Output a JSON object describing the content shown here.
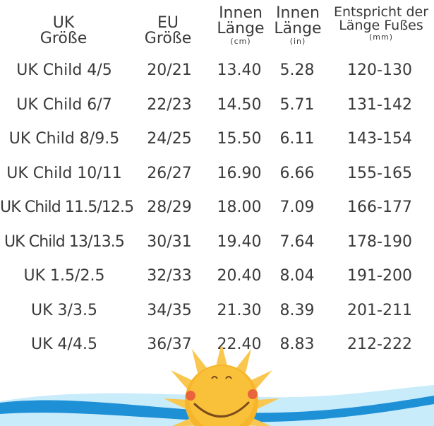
{
  "headers": {
    "uk": {
      "line1": "UK",
      "line2": "Größe"
    },
    "eu": {
      "line1": "EU",
      "line2": "Größe"
    },
    "cm": {
      "line1": "Innen",
      "line2": "Länge",
      "unit": "(cm)"
    },
    "in": {
      "line1": "Innen",
      "line2": "Länge",
      "unit": "(in)"
    },
    "mm": {
      "line1": "Entspricht der",
      "line2": "Länge Fußes",
      "unit": "(mm)"
    }
  },
  "rows": [
    {
      "size": "UK Child 4/5",
      "eu": "20/21",
      "cm": "13.40",
      "in": "5.28",
      "mm": "120-130"
    },
    {
      "size": "UK Child 6/7",
      "eu": "22/23",
      "cm": "14.50",
      "in": "5.71",
      "mm": "131-142"
    },
    {
      "size": "UK Child 8/9.5",
      "eu": "24/25",
      "cm": "15.50",
      "in": "6.11",
      "mm": "143-154"
    },
    {
      "size": "UK Child 10/11",
      "eu": "26/27",
      "cm": "16.90",
      "in": "6.66",
      "mm": "155-165"
    },
    {
      "size": "UK Child 11.5/12.5",
      "eu": "28/29",
      "cm": "18.00",
      "in": "7.09",
      "mm": "166-177"
    },
    {
      "size": "UK Child 13/13.5",
      "eu": "30/31",
      "cm": "19.40",
      "in": "7.64",
      "mm": "178-190"
    },
    {
      "size": "UK 1.5/2.5",
      "eu": "32/33",
      "cm": "20.40",
      "in": "8.04",
      "mm": "191-200"
    },
    {
      "size": "UK 3/3.5",
      "eu": "34/35",
      "cm": "21.30",
      "in": "8.39",
      "mm": "201-211"
    },
    {
      "size": "UK 4/4.5",
      "eu": "36/37",
      "cm": "22.40",
      "in": "8.83",
      "mm": "212-222"
    }
  ],
  "colors": {
    "text": "#3a3a3a",
    "sun": "#f7b52c",
    "sun_rays": "#f9c74f",
    "wave_dark": "#1e90d6",
    "wave_light": "#c9ecfb"
  }
}
